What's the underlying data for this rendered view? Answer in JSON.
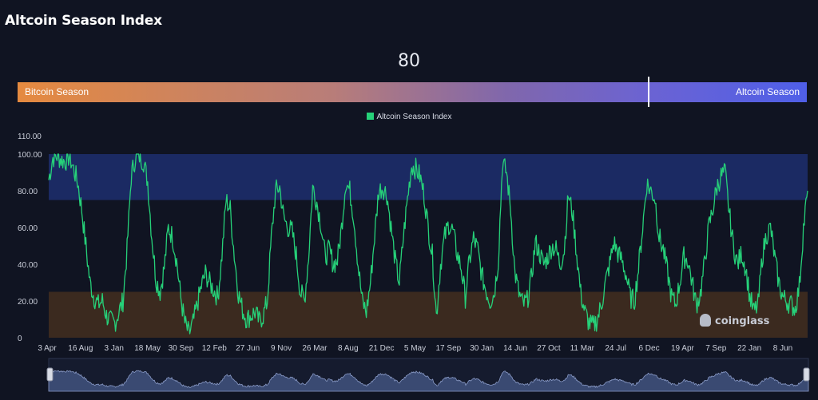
{
  "header": {
    "title": "Altcoin Season Index",
    "current_value": "80"
  },
  "gauge": {
    "left_label": "Bitcoin Season",
    "right_label": "Altcoin Season",
    "value": 80,
    "min": 0,
    "max": 100
  },
  "watermark": "coinglass",
  "colors": {
    "line": "#26d179",
    "altcoin_zone": "#1b2a63",
    "bitcoin_zone": "#3b2a1f",
    "navigator": "#3a4a72"
  },
  "chart_data": {
    "type": "line",
    "legend": [
      "Altcoin Season Index"
    ],
    "legend_color": "#26d179",
    "ylim": [
      0,
      110
    ],
    "y_ticks": [
      "0",
      "20.00",
      "40.00",
      "60.00",
      "80.00",
      "100.00",
      "110.00"
    ],
    "x_tick_labels": [
      "3 Apr",
      "16 Aug",
      "3 Jan",
      "18 May",
      "30 Sep",
      "12 Feb",
      "27 Jun",
      "9 Nov",
      "26 Mar",
      "8 Aug",
      "21 Dec",
      "5 May",
      "17 Sep",
      "30 Jan",
      "14 Jun",
      "27 Oct",
      "11 Mar",
      "24 Jul",
      "6 Dec",
      "19 Apr",
      "7 Sep",
      "22 Jan",
      "8 Jun"
    ],
    "zones": [
      {
        "name": "Altcoin Season",
        "from": 75,
        "to": 100
      },
      {
        "name": "Bitcoin Season",
        "from": 0,
        "to": 25
      }
    ],
    "series": [
      {
        "name": "Altcoin Season Index",
        "values": [
          86,
          98,
          99,
          97,
          96,
          99,
          92,
          85,
          70,
          50,
          30,
          22,
          18,
          20,
          12,
          9,
          8,
          14,
          20,
          48,
          88,
          98,
          99,
          96,
          85,
          55,
          32,
          25,
          38,
          60,
          55,
          42,
          22,
          8,
          2,
          8,
          18,
          28,
          35,
          30,
          26,
          22,
          45,
          75,
          70,
          45,
          24,
          15,
          10,
          12,
          14,
          9,
          12,
          20,
          55,
          80,
          82,
          65,
          60,
          58,
          45,
          25,
          20,
          44,
          82,
          74,
          62,
          44,
          48,
          40,
          42,
          60,
          85,
          80,
          65,
          40,
          20,
          14,
          30,
          55,
          80,
          82,
          78,
          60,
          42,
          30,
          55,
          76,
          94,
          92,
          88,
          78,
          60,
          45,
          12,
          40,
          55,
          62,
          58,
          46,
          38,
          22,
          42,
          54,
          48,
          34,
          26,
          20,
          24,
          42,
          95,
          90,
          70,
          36,
          24,
          18,
          20,
          32,
          52,
          46,
          40,
          44,
          50,
          48,
          40,
          48,
          78,
          68,
          46,
          24,
          14,
          8,
          6,
          10,
          18,
          30,
          40,
          52,
          46,
          42,
          34,
          22,
          20,
          38,
          60,
          84,
          80,
          76,
          55,
          48,
          36,
          22,
          18,
          30,
          44,
          42,
          30,
          18,
          24,
          40,
          60,
          70,
          82,
          88,
          90,
          68,
          50,
          40,
          46,
          38,
          22,
          14,
          18,
          44,
          56,
          60,
          44,
          30,
          22,
          20,
          18,
          16,
          28,
          60,
          80
        ]
      }
    ]
  }
}
